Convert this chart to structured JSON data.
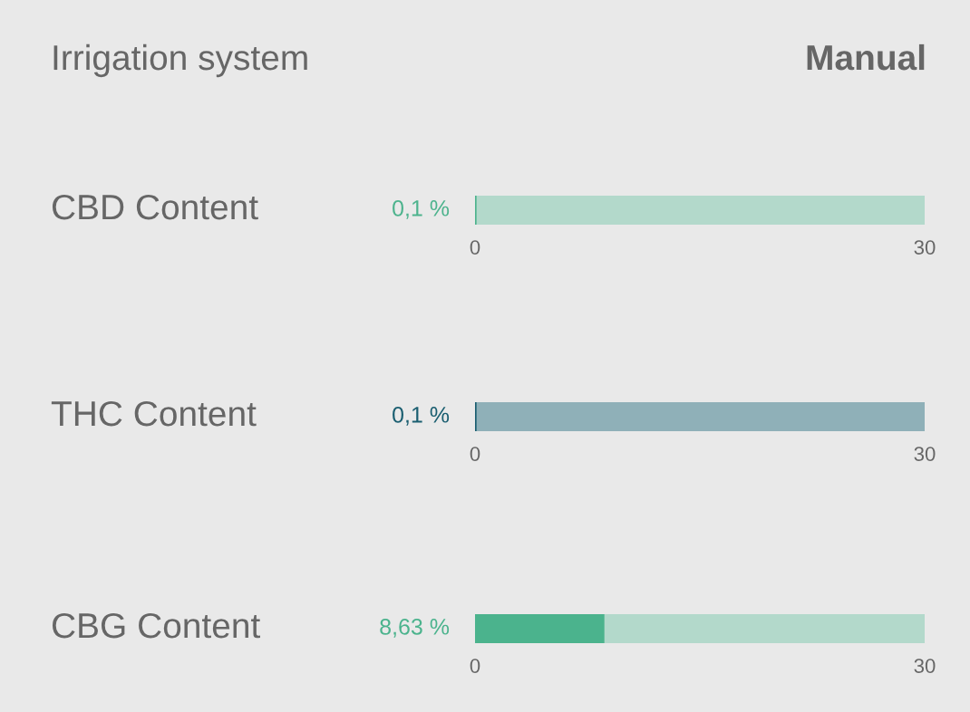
{
  "chart_data": [
    {
      "type": "other",
      "title": "Irrigation system",
      "annotations": [
        "Manual"
      ]
    },
    {
      "type": "bar",
      "orientation": "horizontal",
      "categories": [
        "CBD Content"
      ],
      "values": [
        0.1
      ],
      "colors": [
        "#4db38d"
      ],
      "value_labels": [
        "0,1 %"
      ],
      "xlim": [
        0,
        30
      ],
      "xticks": [
        0,
        30
      ],
      "bands": [
        {
          "axis": "x",
          "from": 0,
          "to": 30,
          "color": "#b3d9cb"
        }
      ]
    },
    {
      "type": "bar",
      "orientation": "horizontal",
      "categories": [
        "THC Content"
      ],
      "values": [
        0.1
      ],
      "colors": [
        "#1a5e70"
      ],
      "value_labels": [
        "0,1 %"
      ],
      "xlim": [
        0,
        30
      ],
      "xticks": [
        0,
        30
      ],
      "bands": [
        {
          "axis": "x",
          "from": 0,
          "to": 30,
          "color": "#8fb0b8"
        }
      ]
    },
    {
      "type": "bar",
      "orientation": "horizontal",
      "categories": [
        "CBG Content"
      ],
      "values": [
        8.63
      ],
      "colors": [
        "#4bb38d"
      ],
      "value_labels": [
        "8,63 %"
      ],
      "xlim": [
        0,
        30
      ],
      "xticks": [
        0,
        30
      ],
      "bands": [
        {
          "axis": "x",
          "from": 0,
          "to": 30,
          "color": "#b3d9cb"
        }
      ]
    }
  ]
}
